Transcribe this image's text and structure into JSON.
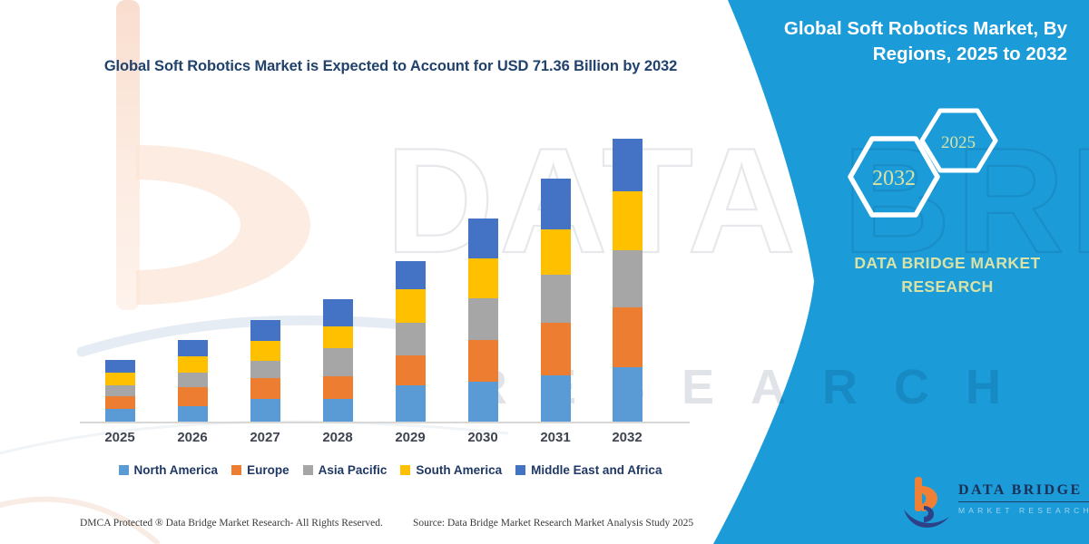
{
  "colors": {
    "panel_blue": "#1b9bd8",
    "title_navy": "#21426c",
    "legend_navy": "#1f3864",
    "pale_yellow_text": "#dae3a5",
    "axis_label_gray": "#3e4450",
    "logo_orange": "#f08036",
    "logo_navy": "#2c4187"
  },
  "chart": {
    "title": "Global Soft Robotics Market is Expected to Account for USD 71.36 Billion by 2032",
    "chart_data": {
      "type": "bar",
      "stacked": true,
      "unit": "USD Billion",
      "categories": [
        "2025",
        "2026",
        "2027",
        "2028",
        "2029",
        "2030",
        "2031",
        "2032"
      ],
      "series": [
        {
          "name": "North America",
          "color": "#5b9bd5",
          "values": [
            3.2,
            4.0,
            5.7,
            5.7,
            9.1,
            10.1,
            11.6,
            13.7
          ]
        },
        {
          "name": "Europe",
          "color": "#ed7d31",
          "values": [
            3.3,
            4.7,
            5.3,
            5.7,
            7.5,
            10.5,
            13.2,
            15.1
          ]
        },
        {
          "name": "Asia Pacific",
          "color": "#a6a6a6",
          "values": [
            2.6,
            3.7,
            4.4,
            7.2,
            8.3,
            10.5,
            12.1,
            14.4
          ]
        },
        {
          "name": "South America",
          "color": "#ffc000",
          "values": [
            3.2,
            4.1,
            4.9,
            5.5,
            8.5,
            10.1,
            11.6,
            14.9
          ]
        },
        {
          "name": "Middle East and Africa",
          "color": "#4472c4",
          "values": [
            3.2,
            4.1,
            5.3,
            6.7,
            7.0,
            10.0,
            12.8,
            13.26
          ]
        }
      ],
      "totals": [
        15.5,
        20.6,
        25.6,
        30.8,
        40.4,
        51.2,
        61.3,
        71.36
      ],
      "ylim": [
        0,
        75
      ],
      "grid": false,
      "y_axis_visible": false,
      "legend_position": "bottom"
    }
  },
  "sidebar": {
    "heading_lines": [
      "Global Soft Robotics Market, By",
      "Regions, 2025 to 2032"
    ],
    "hexagons": [
      {
        "label": "2032"
      },
      {
        "label": "2025"
      }
    ],
    "brand_lines": [
      "DATA BRIDGE MARKET",
      "RESEARCH"
    ],
    "logo": {
      "name": "DATA BRIDGE",
      "subtitle": "MARKET RESEARCH"
    }
  },
  "watermarks": {
    "large_text": "DATA BRIDGE",
    "spaced_text": "RESEARCH"
  },
  "footer": {
    "left": "DMCA Protected ® Data Bridge Market Research-  All Rights Reserved.",
    "source": "Source: Data Bridge Market Research  Market Analysis Study 2025"
  }
}
